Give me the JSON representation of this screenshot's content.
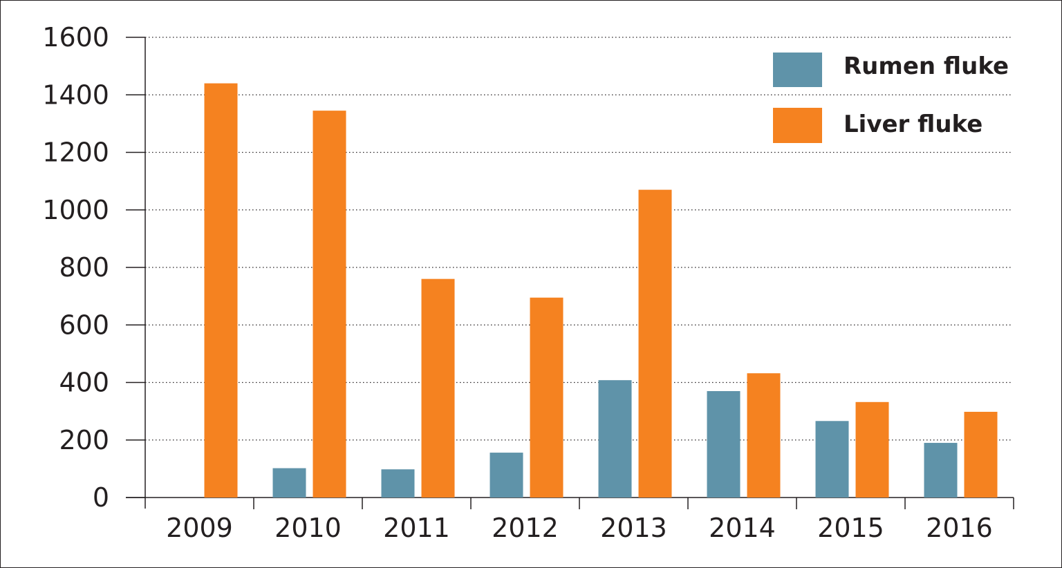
{
  "chart_data": {
    "type": "bar",
    "title": "",
    "xlabel": "",
    "ylabel": "",
    "categories": [
      "2009",
      "2010",
      "2011",
      "2012",
      "2013",
      "2014",
      "2015",
      "2016"
    ],
    "ylim": [
      0,
      1600
    ],
    "yticks": [
      "0",
      "200",
      "400",
      "600",
      "800",
      "1000",
      "1200",
      "1400",
      "1600"
    ],
    "grid": "horizontal dotted",
    "legend_position": "top-right",
    "series": [
      {
        "name": "Rumen fluke",
        "color": "#5f93a9",
        "values": [
          0,
          102,
          98,
          156,
          408,
          370,
          266,
          190
        ]
      },
      {
        "name": "Liver fluke",
        "color": "#f58220",
        "values": [
          1440,
          1345,
          760,
          695,
          1070,
          432,
          332,
          298
        ]
      }
    ]
  }
}
